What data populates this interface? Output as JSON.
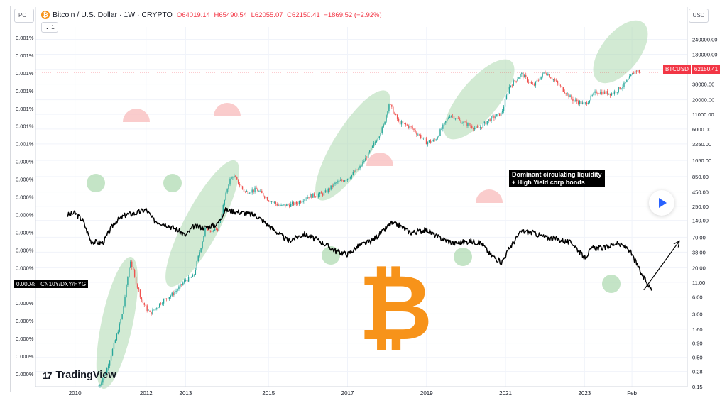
{
  "header": {
    "title": "Bitcoin / U.S. Dollar · 1W · CRYPTO",
    "open": "O64019.14",
    "high": "H65490.54",
    "low": "L62055.07",
    "close": "C62150.41",
    "change": "−1869.52 (−2.92%)",
    "interval": "1"
  },
  "buttons": {
    "pct": "PCT",
    "usd": "USD"
  },
  "left_axis": {
    "ticks": [
      "0.001%",
      "0.001%",
      "0.001%",
      "0.001%",
      "0.001%",
      "0.001%",
      "0.001%",
      "0.000%",
      "0.000%",
      "0.000%",
      "0.000%",
      "0.000%",
      "0.000%",
      "0.000%",
      "0.000%",
      "0.000%",
      "0.000%",
      "0.000%",
      "0.000%",
      "0.000%"
    ]
  },
  "right_axis": {
    "ticks": [
      "240000.00",
      "130000.00",
      "70000.00",
      "38000.00",
      "20000.00",
      "11000.00",
      "6000.00",
      "3250.00",
      "1650.00",
      "850.00",
      "450.00",
      "250.00",
      "140.00",
      "70.00",
      "38.00",
      "20.00",
      "11.00",
      "6.00",
      "3.00",
      "1.60",
      "0.90",
      "0.50",
      "0.28",
      "0.15"
    ]
  },
  "x_axis": {
    "ticks": [
      "2010",
      "2012",
      "2013",
      "2015",
      "2017",
      "2019",
      "2021",
      "2023",
      "Feb"
    ]
  },
  "overlay_label": {
    "value": "0.000%",
    "name": "CN10Y/DXY/HYG"
  },
  "price_tag": {
    "symbol": "BTCUSD",
    "price": "62150.41"
  },
  "annotation": {
    "text": "Dominant circulating liquidity\n+ High Yield corp bonds"
  },
  "branding": {
    "name": "TradingView",
    "mark": "17"
  },
  "colors": {
    "up": "#26a69a",
    "down": "#ef5350",
    "green_zone": "#a5d6a7",
    "red_zone": "#f8bbbb",
    "btc": "#f7931a",
    "price_line": "#f23645"
  },
  "chart_data": {
    "type": "line",
    "title": "Bitcoin / U.S. Dollar · 1W · CRYPTO",
    "y_scale": "log",
    "y_range": [
      0.15,
      400000
    ],
    "x_range": [
      2009.0,
      2025.5
    ],
    "grid": true,
    "series": [
      {
        "name": "BTCUSD",
        "x": [
          2010.6,
          2010.8,
          2011.0,
          2011.2,
          2011.4,
          2011.5,
          2011.7,
          2011.9,
          2012.2,
          2012.5,
          2012.8,
          2013.0,
          2013.3,
          2013.6,
          2013.9,
          2014.0,
          2014.3,
          2014.6,
          2014.9,
          2015.2,
          2015.6,
          2015.9,
          2016.3,
          2016.6,
          2016.9,
          2017.2,
          2017.5,
          2017.8,
          2017.95,
          2018.2,
          2018.5,
          2018.9,
          2019.1,
          2019.5,
          2019.8,
          2020.2,
          2020.5,
          2020.8,
          2021.0,
          2021.3,
          2021.6,
          2021.9,
          2022.2,
          2022.6,
          2022.9,
          2023.2,
          2023.6,
          2023.9,
          2024.2,
          2024.3
        ],
        "values": [
          0.15,
          0.3,
          0.9,
          3,
          28,
          14,
          5,
          3,
          5,
          7,
          12,
          14,
          100,
          90,
          700,
          900,
          450,
          500,
          330,
          250,
          280,
          380,
          420,
          650,
          800,
          1200,
          2600,
          6500,
          17000,
          8000,
          6500,
          3500,
          3700,
          11000,
          8000,
          6000,
          9000,
          11500,
          35000,
          58000,
          35000,
          64000,
          40000,
          20000,
          16500,
          28000,
          26000,
          37000,
          68000,
          62150
        ]
      },
      {
        "name": "CN10Y/DXY/HYG",
        "x": [
          2009.8,
          2010.0,
          2010.2,
          2010.4,
          2010.7,
          2011.0,
          2011.3,
          2011.5,
          2011.8,
          2012.0,
          2012.3,
          2012.6,
          2012.8,
          2013.0,
          2013.3,
          2013.6,
          2013.8,
          2014.0,
          2014.3,
          2014.6,
          2015.0,
          2015.4,
          2015.8,
          2016.2,
          2016.6,
          2016.9,
          2017.2,
          2017.5,
          2017.8,
          2018.0,
          2018.2,
          2018.5,
          2018.9,
          2019.2,
          2019.6,
          2020.0,
          2020.3,
          2020.5,
          2020.8,
          2021.0,
          2021.3,
          2021.6,
          2021.9,
          2022.2,
          2022.6,
          2022.9,
          2023.1,
          2023.4,
          2023.7,
          2024.0,
          2024.2,
          2024.35,
          2024.6
        ],
        "values": [
          175,
          190,
          140,
          60,
          55,
          130,
          180,
          185,
          220,
          140,
          120,
          95,
          75,
          110,
          105,
          120,
          215,
          205,
          190,
          170,
          100,
          60,
          80,
          60,
          40,
          35,
          50,
          60,
          90,
          125,
          115,
          85,
          95,
          70,
          55,
          60,
          55,
          35,
          25,
          45,
          90,
          85,
          70,
          65,
          55,
          30,
          45,
          45,
          55,
          45,
          25,
          15,
          8
        ]
      }
    ],
    "zones": {
      "green": [
        "2010.4 low",
        "2012.7 low",
        "2016.5 low",
        "2020.3 low",
        "2024.2 low",
        "2011.0–2011.6 rally",
        "2012.5–2014.0 rally",
        "2015.8–2018.0 rally",
        "2020.0–2021.2 rally",
        "2023.8–2024.9 rally"
      ],
      "red": [
        "2011.8 peak",
        "2013.9 peak",
        "2018.0 peak",
        "2021.0 peak"
      ]
    },
    "projection": {
      "from": [
        2024.4,
        8
      ],
      "to": [
        2025.3,
        60
      ]
    }
  }
}
